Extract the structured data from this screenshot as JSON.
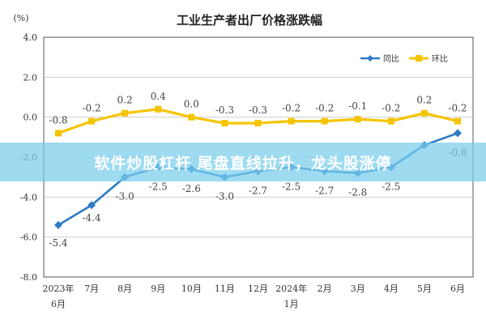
{
  "chart_data": {
    "type": "line",
    "title": "工业生产者出厂价格涨跌幅",
    "yunit": "(%)",
    "ylim": [
      -8.0,
      4.0
    ],
    "yticks": [
      "4.0",
      "2.0",
      "0.0",
      "-2.0",
      "-4.0",
      "-6.0",
      "-8.0"
    ],
    "ytick_values": [
      4,
      2,
      0,
      -2,
      -4,
      -6,
      -8
    ],
    "categories": [
      "2023年6月",
      "7月",
      "8月",
      "9月",
      "10月",
      "11月",
      "12月",
      "2024年1月",
      "2月",
      "3月",
      "4月",
      "5月",
      "6月"
    ],
    "grid": true,
    "legend_position": "top-right",
    "series": [
      {
        "name": "同比",
        "color": "#2e7cc4",
        "values": [
          -5.4,
          -4.4,
          -3.0,
          -2.5,
          -2.6,
          -3.0,
          -2.7,
          -2.5,
          -2.7,
          -2.8,
          -2.5,
          -1.4,
          -0.8
        ],
        "labels": [
          "-5.4",
          "-4.4",
          "-3.0",
          "-2.5",
          "-2.6",
          "-3.0",
          "-2.7",
          "-2.5",
          "-2.7",
          "-2.8",
          "-2.5",
          "",
          "-0.8"
        ]
      },
      {
        "name": "环比",
        "color": "#f5c400",
        "values": [
          -0.8,
          -0.2,
          0.2,
          0.4,
          0.0,
          -0.3,
          -0.3,
          -0.2,
          -0.2,
          -0.1,
          -0.2,
          0.2,
          -0.2
        ],
        "labels": [
          "-0.8",
          "-0.2",
          "0.2",
          "0.4",
          "0.0",
          "-0.3",
          "-0.3",
          "-0.2",
          "-0.2",
          "-0.1",
          "-0.2",
          "0.2",
          "-0.2"
        ]
      }
    ]
  },
  "banner": {
    "text": "软件炒股杠杆 尾盘直线拉升，龙头股涨停"
  }
}
